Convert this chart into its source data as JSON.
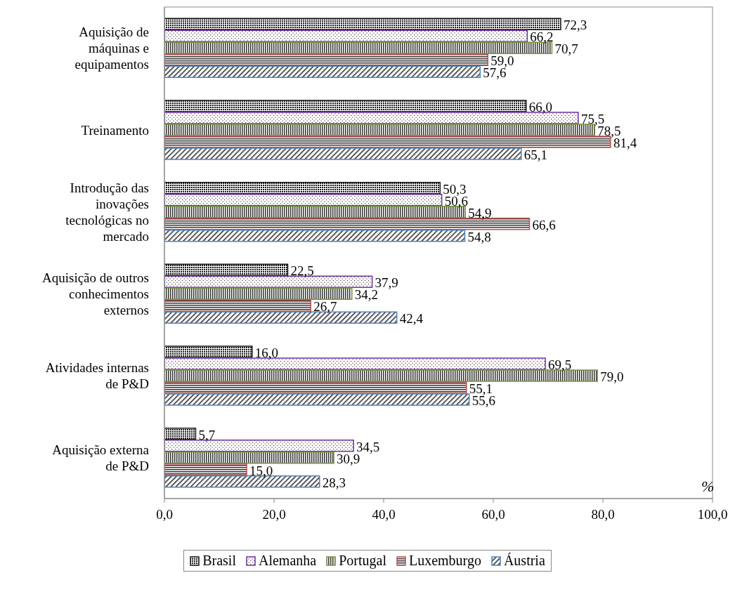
{
  "chart_data": {
    "type": "bar",
    "orientation": "horizontal",
    "xlabel": "%",
    "categories": [
      "Aquisição de máquinas e equipamentos",
      "Treinamento",
      "Introdução das inovações tecnológicas no mercado",
      "Aquisição de outros conhecimentos externos",
      "Atividades internas de P&D",
      "Aquisição externa de P&D"
    ],
    "series": [
      {
        "name": "Brasil",
        "color": "#1a1a1a",
        "values": [
          72.3,
          66.0,
          50.3,
          22.5,
          16.0,
          5.7
        ],
        "value_labels": [
          "72,3",
          "66,0",
          "50,3",
          "22,5",
          "16,0",
          "5,7"
        ]
      },
      {
        "name": "Alemanha",
        "color": "#7030a0",
        "values": [
          66.2,
          75.5,
          50.6,
          37.9,
          69.5,
          34.5
        ],
        "value_labels": [
          "66,2",
          "75,5",
          "50,6",
          "37,9",
          "69,5",
          "34,5"
        ]
      },
      {
        "name": "Portugal",
        "color": "#77933c",
        "values": [
          70.7,
          78.5,
          54.9,
          34.2,
          79.0,
          30.9
        ],
        "value_labels": [
          "70,7",
          "78,5",
          "54,9",
          "34,2",
          "79,0",
          "30,9"
        ]
      },
      {
        "name": "Luxemburgo",
        "color": "#c0504d",
        "values": [
          59.0,
          81.4,
          66.6,
          26.7,
          55.1,
          15.0
        ],
        "value_labels": [
          "59,0",
          "81,4",
          "66,6",
          "26,7",
          "55,1",
          "15,0"
        ]
      },
      {
        "name": "Áustria",
        "color": "#4f81bd",
        "values": [
          57.6,
          65.1,
          54.8,
          42.4,
          55.6,
          28.3
        ],
        "value_labels": [
          "57,6",
          "65,1",
          "54,8",
          "42,4",
          "55,6",
          "28,3"
        ]
      }
    ],
    "xlim": [
      0,
      100
    ],
    "xticks": [
      {
        "value": 0,
        "label": "0,0"
      },
      {
        "value": 20,
        "label": "20,0"
      },
      {
        "value": 40,
        "label": "40,0"
      },
      {
        "value": 60,
        "label": "60,0"
      },
      {
        "value": 80,
        "label": "80,0"
      },
      {
        "value": 100,
        "label": "100,0"
      }
    ],
    "legend": "bottom"
  }
}
